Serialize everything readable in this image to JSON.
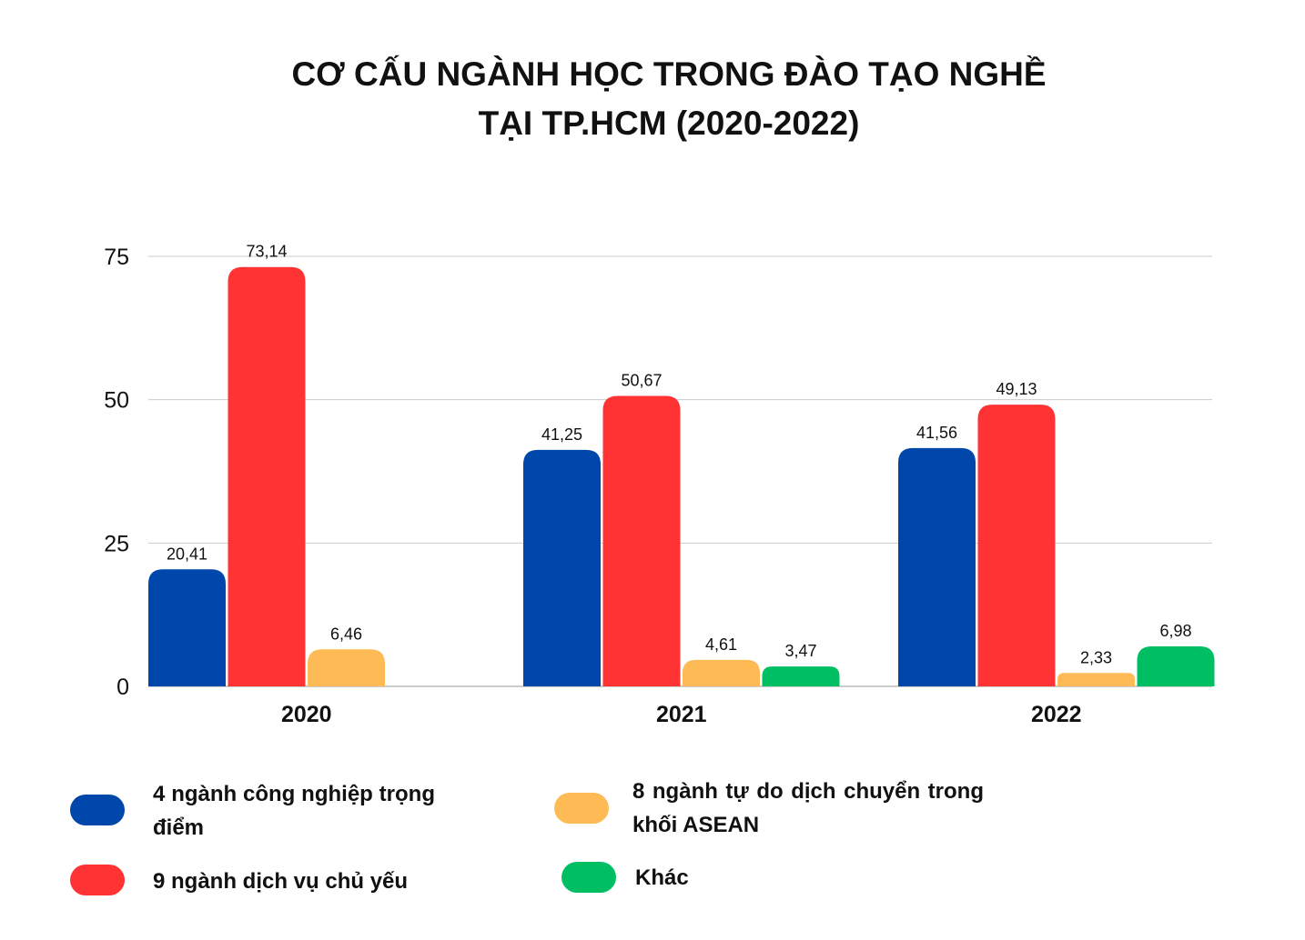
{
  "chart_data": {
    "type": "bar",
    "title_lines": [
      "CƠ CẤU NGÀNH HỌC TRONG ĐÀO TẠO NGHỀ",
      "TẠI TP.HCM (2020-2022)"
    ],
    "categories": [
      "2020",
      "2021",
      "2022"
    ],
    "series": [
      {
        "name": "4 ngành công nghiệp trọng điểm",
        "color": "#0047AB",
        "values": [
          20.41,
          41.25,
          41.56
        ],
        "labels": [
          "20,41",
          "41,25",
          "41,56"
        ]
      },
      {
        "name": "9 ngành dịch vụ chủ yếu",
        "color": "#FF3333",
        "values": [
          73.14,
          50.67,
          49.13
        ],
        "labels": [
          "73,14",
          "50,67",
          "49,13"
        ]
      },
      {
        "name": "8 ngành tự do dịch chuyển trong khối ASEAN",
        "color": "#FDBA55",
        "values": [
          6.46,
          4.61,
          2.33
        ],
        "labels": [
          "6,46",
          "4,61",
          "2,33"
        ]
      },
      {
        "name": "Khác",
        "color": "#00BF63",
        "values": [
          null,
          3.47,
          6.98
        ],
        "labels": [
          "",
          "3,47",
          "6,98"
        ]
      }
    ],
    "yticks": [
      "0",
      "25",
      "50",
      "75"
    ],
    "ylim": [
      0,
      75
    ],
    "grid": true,
    "legend_position": "bottom"
  }
}
